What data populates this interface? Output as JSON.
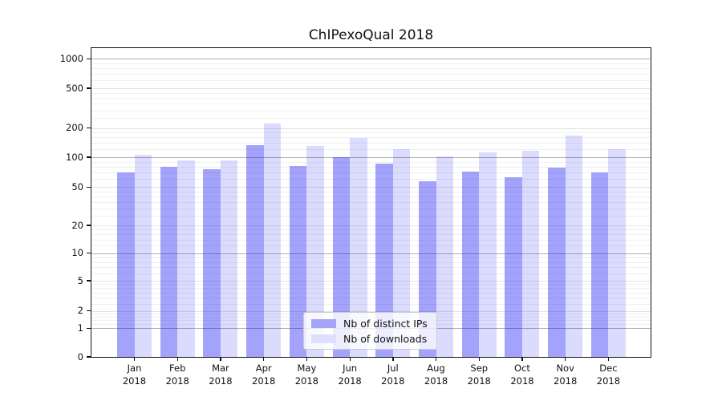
{
  "title": "ChIPexoQual 2018",
  "chart_data": {
    "type": "bar",
    "title": "ChIPexoQual 2018",
    "categories": [
      "Jan",
      "Feb",
      "Mar",
      "Apr",
      "May",
      "Jun",
      "Jul",
      "Aug",
      "Sep",
      "Oct",
      "Nov",
      "Dec"
    ],
    "year": "2018",
    "series": [
      {
        "name": "Nb of distinct IPs",
        "values": [
          70,
          80,
          75,
          134,
          82,
          100,
          86,
          57,
          71,
          63,
          79,
          70
        ],
        "bar_color": "rgba(0,0,243,0.36)",
        "swatch_hex": "#a4a4f9"
      },
      {
        "name": "Nb of downloads",
        "values": [
          105,
          92,
          92,
          220,
          130,
          157,
          121,
          101,
          113,
          117,
          167,
          120
        ],
        "bar_color": "rgba(0,0,243,0.14)",
        "swatch_hex": "#dedeff"
      }
    ],
    "xlabel": "",
    "ylabel": "",
    "yticks": [
      0,
      1,
      2,
      5,
      10,
      20,
      50,
      100,
      200,
      500,
      1000
    ],
    "yscale": "symlog",
    "ylim": [
      0,
      1300
    ],
    "grid": true,
    "legend_position": "lower center",
    "grid_colors": {
      "major": "#b1b1b1",
      "labeled_minor": "#e2e2e2",
      "minor": "#f0f0f0"
    }
  }
}
